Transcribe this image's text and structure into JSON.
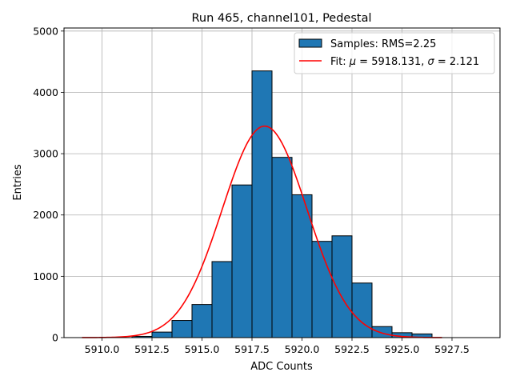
{
  "chart_data": {
    "type": "bar",
    "title": "Run 465, channel101, Pedestal",
    "xlabel": "ADC Counts",
    "ylabel": "Entries",
    "xlim": [
      5908.1,
      5929.9
    ],
    "ylim": [
      0,
      5050
    ],
    "xticks": [
      "5910.0",
      "5912.5",
      "5915.0",
      "5917.5",
      "5920.0",
      "5922.5",
      "5925.0",
      "5927.5"
    ],
    "xtick_values": [
      5910.0,
      5912.5,
      5915.0,
      5917.5,
      5920.0,
      5922.5,
      5925.0,
      5927.5
    ],
    "yticks": [
      "0",
      "1000",
      "2000",
      "3000",
      "4000",
      "5000"
    ],
    "ytick_values": [
      0,
      1000,
      2000,
      3000,
      4000,
      5000
    ],
    "grid": true,
    "legend_position": "top-right",
    "bin_edges": [
      5911.5,
      5912.5,
      5913.5,
      5914.5,
      5915.5,
      5916.5,
      5917.5,
      5918.5,
      5919.5,
      5920.5,
      5921.5,
      5922.5,
      5923.5,
      5924.5,
      5925.5,
      5926.5
    ],
    "series": [
      {
        "name": "Samples: RMS=2.25",
        "kind": "histogram",
        "color": "#1f77b4",
        "edgecolor": "#000000",
        "values": [
          20,
          90,
          280,
          540,
          1240,
          2490,
          4350,
          2940,
          2330,
          1570,
          1660,
          890,
          180,
          80,
          60
        ]
      },
      {
        "name": "Fit: μ = 5918.131, σ = 2.121",
        "legend_parts": [
          "Fit: ",
          "μ",
          " = 5918.131, ",
          "σ",
          " = 2.121"
        ],
        "kind": "gaussian",
        "color": "#ff0000",
        "mu": 5918.131,
        "sigma": 2.121,
        "amplitude": 3450,
        "x_range": [
          5909.0,
          5927.0
        ]
      }
    ]
  }
}
